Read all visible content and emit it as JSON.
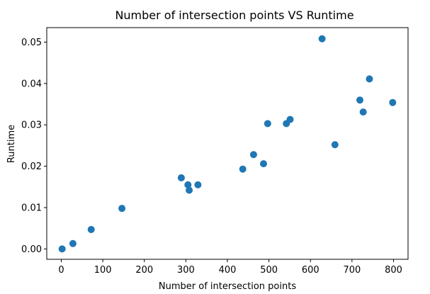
{
  "chart_data": {
    "type": "scatter",
    "title": "Number of intersection points VS Runtime",
    "xlabel": "Number of intersection points",
    "ylabel": "Runtime",
    "xlim": [
      -35,
      835
    ],
    "ylim": [
      -0.0025,
      0.0535
    ],
    "xticks": [
      0,
      100,
      200,
      300,
      400,
      500,
      600,
      700,
      800
    ],
    "yticks": [
      0.0,
      0.01,
      0.02,
      0.03,
      0.04,
      0.05
    ],
    "xtick_labels": [
      "0",
      "100",
      "200",
      "300",
      "400",
      "500",
      "600",
      "700",
      "800"
    ],
    "ytick_labels": [
      "0.00",
      "0.01",
      "0.02",
      "0.03",
      "0.04",
      "0.05"
    ],
    "grid": false,
    "marker_color": "#1f77b4",
    "series": [
      {
        "x": [
          2,
          28,
          72,
          146,
          289,
          305,
          308,
          329,
          437,
          463,
          487,
          497,
          542,
          551,
          628,
          659,
          719,
          727,
          742,
          798
        ],
        "y": [
          0.0,
          0.0013,
          0.0047,
          0.0098,
          0.0172,
          0.0155,
          0.0142,
          0.0155,
          0.0193,
          0.0228,
          0.0206,
          0.0303,
          0.0303,
          0.0313,
          0.0508,
          0.0252,
          0.036,
          0.0331,
          0.0411,
          0.0354
        ]
      }
    ]
  }
}
